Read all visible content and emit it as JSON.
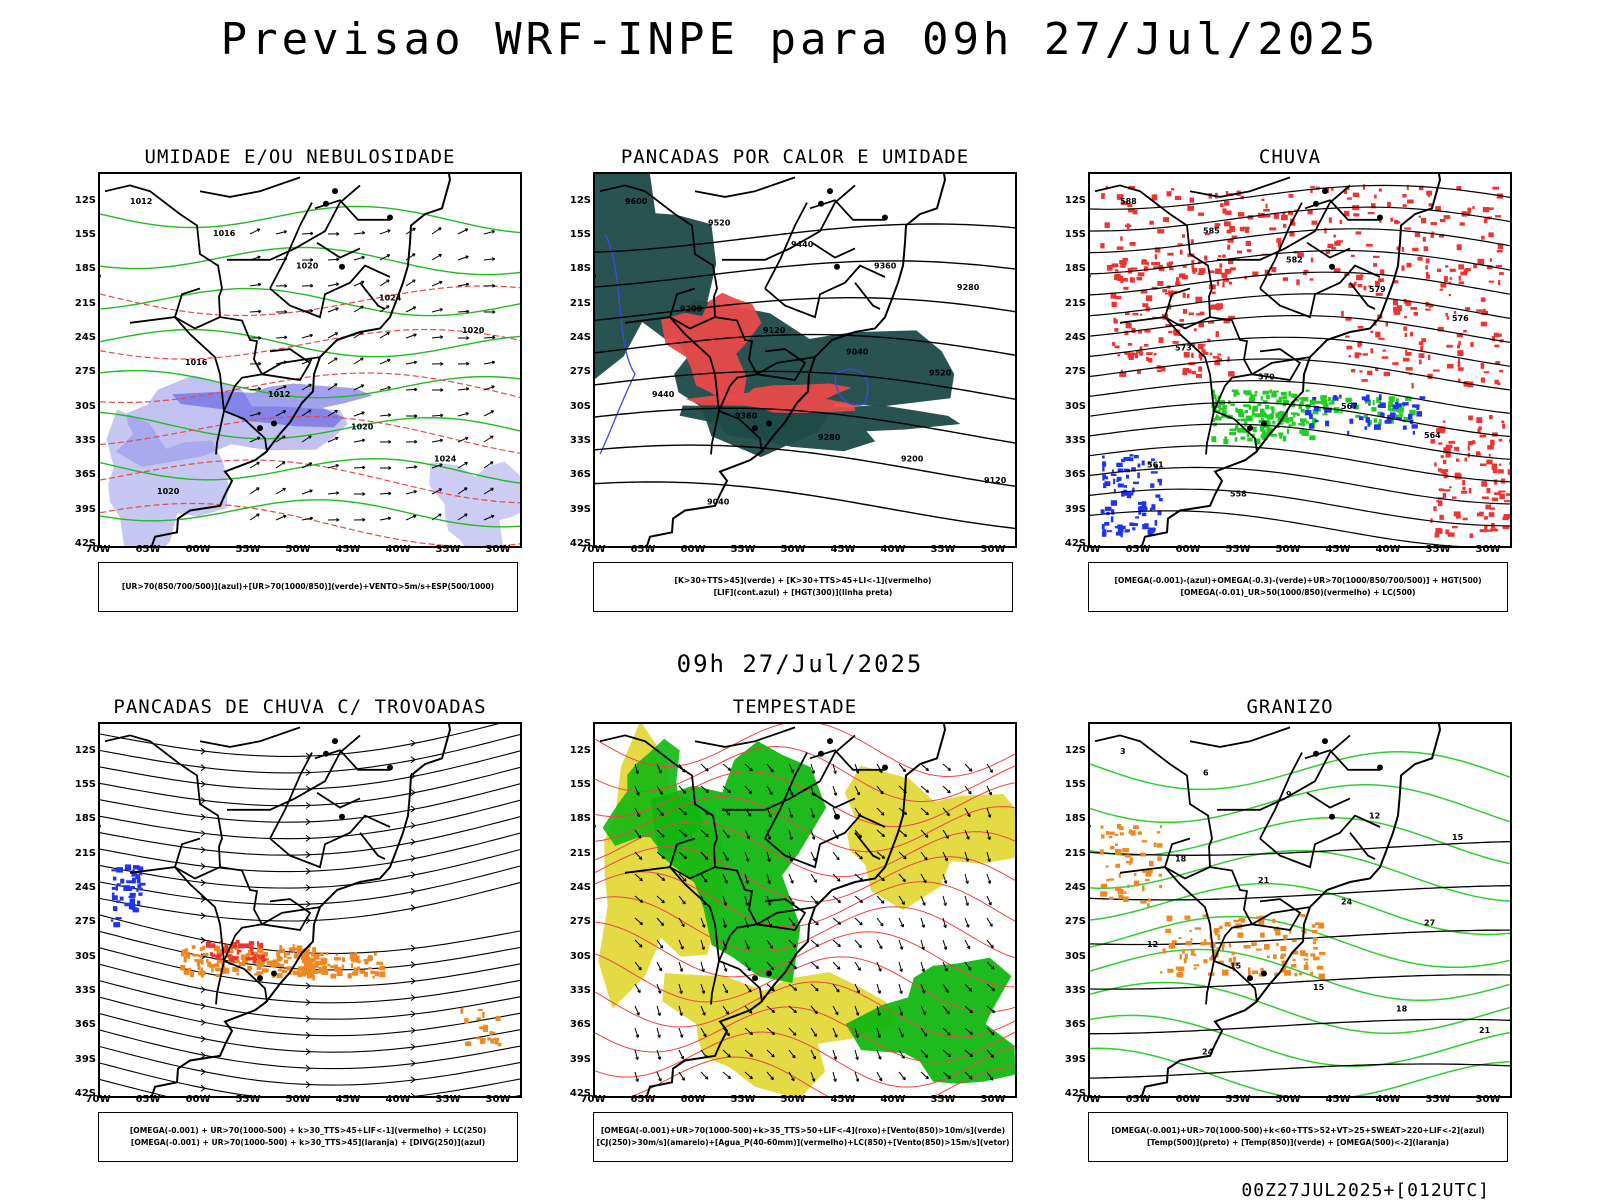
{
  "header": {
    "title": "Previsao WRF-INPE  para 09h 27/Jul/2025",
    "mid_title": "09h 27/Jul/2025",
    "footer_code": "00Z27JUL2025+[012UTC]"
  },
  "axes": {
    "lat_labels": [
      "12S",
      "15S",
      "18S",
      "21S",
      "24S",
      "27S",
      "30S",
      "33S",
      "36S",
      "39S",
      "42S"
    ],
    "lon_labels": [
      "70W",
      "65W",
      "60W",
      "55W",
      "50W",
      "45W",
      "40W",
      "35W",
      "30W"
    ]
  },
  "panels": [
    {
      "title": "UMIDADE E/OU NEBULOSIDADE",
      "legend": [
        "[UR>70(850/700/500)](azul)+[UR>70(1000/850)](verde)+VENTO>5m/s+ESP(500/1000)"
      ],
      "contour_labels": [
        "1012",
        "1016",
        "1020",
        "1024",
        "1020",
        "1016",
        "1012",
        "1020",
        "1024",
        "1020"
      ]
    },
    {
      "title": "PANCADAS POR CALOR E UMIDADE",
      "legend": [
        "[K>30+TTS>45](verde) + [K>30+TTS>45+LI<-1](vermelho)",
        "[LIF](cont.azul) + [HGT(300)](linha preta)"
      ],
      "contour_labels": [
        "9600",
        "9520",
        "9440",
        "9360",
        "9280",
        "9200",
        "9120",
        "9040",
        "9520",
        "9440",
        "9360",
        "9280",
        "9200",
        "9120",
        "9040"
      ]
    },
    {
      "title": "CHUVA",
      "legend": [
        "[OMEGA(-0.001)-(azul)+OMEGA(-0.3)-(verde)+UR>70(1000/850/700/500)] + HGT(500)",
        "[OMEGA(-0.01)_UR>50(1000/850)(vermelho) + LC(500)"
      ],
      "contour_labels": [
        "588",
        "585",
        "582",
        "579",
        "576",
        "573",
        "570",
        "567",
        "564",
        "561",
        "558"
      ]
    },
    {
      "title": "PANCADAS DE CHUVA C/ TROVOADAS",
      "legend": [
        "[OMEGA(-0.001) + UR>70(1000-500) + k>30_TTS>45+LIF<-1](vermelho) + LC(250)",
        "[OMEGA(-0.001) + UR>70(1000-500) + k>30_TTS>45](laranja) + [DIVG(250)](azul)"
      ],
      "contour_labels": []
    },
    {
      "title": "TEMPESTADE",
      "legend": [
        "[OMEGA(-0.001)+UR>70(1000-500)+k>35_TTS>50+LIF<-4](roxo)+[Vento(850)>10m/s](verde)",
        "[CJ(250)>30m/s](amarelo)+[Agua_P(40-60mm)](vermelho)+LC(850)+[Vento(850)>15m/s](vetor)"
      ],
      "contour_labels": []
    },
    {
      "title": "GRANIZO",
      "legend": [
        "[OMEGA(-0.001)+UR>70(1000-500)+k<60+TTS>52+VT>25+SWEAT>220+LIF<-2](azul)",
        "[Temp(500)](preto) + [Temp(850)](verde) + [OMEGA(500)<-2](laranja)"
      ],
      "contour_labels": [
        "3",
        "6",
        "9",
        "12",
        "15",
        "18",
        "21",
        "24",
        "27",
        "12",
        "15",
        "15",
        "18",
        "21",
        "24"
      ]
    }
  ],
  "colors": {
    "background": "#ffffff",
    "relative_humidity_mid": "#8f8fe8",
    "relative_humidity_low": "#22bb22",
    "convection_dark": "#1e4a48",
    "instability_red": "#e84a4a",
    "lif_blue": "#3a4ae8",
    "rain_red": "#ee3333",
    "rain_green": "#22cc22",
    "rain_blue": "#2233ee",
    "thunder_orange": "#ee8822",
    "jet_yellow": "#e3d83a",
    "wind_green": "#11b711",
    "contour_black": "#000000",
    "isotherm_green": "#33cc33"
  }
}
